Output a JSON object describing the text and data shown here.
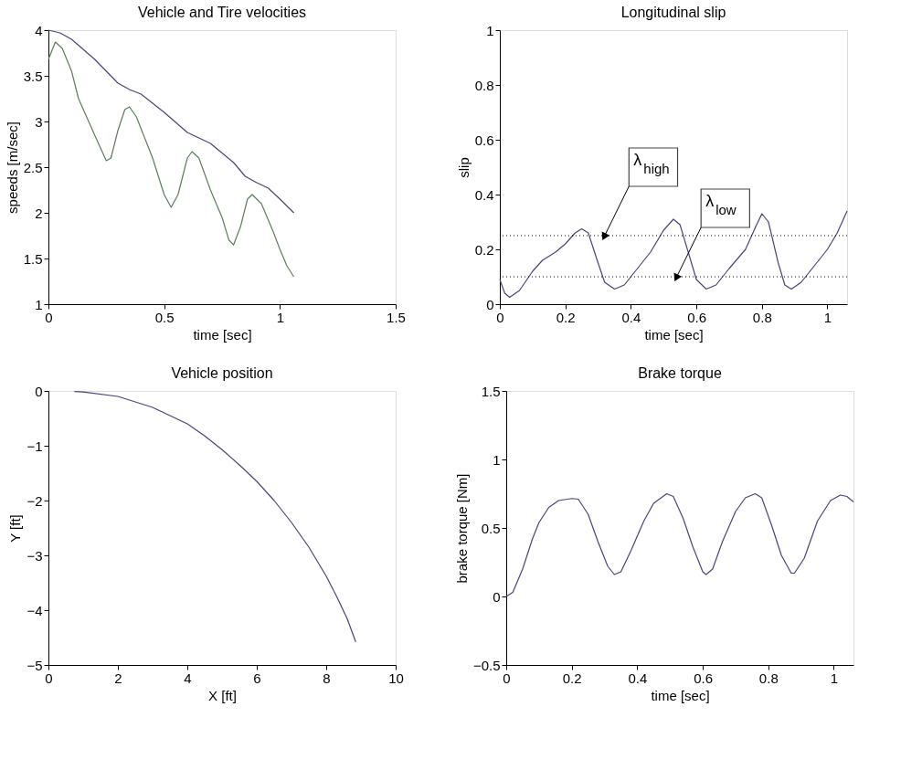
{
  "chart_data": [
    {
      "type": "line",
      "title": "Vehicle and Tire velocities",
      "xlabel": "time [sec]",
      "ylabel": "speeds [m/sec]",
      "xlim": [
        0,
        1.5
      ],
      "ylim": [
        1,
        4
      ],
      "xticks": [
        0,
        0.5,
        1,
        1.5
      ],
      "yticks": [
        1,
        1.5,
        2,
        2.5,
        3,
        3.5,
        4
      ],
      "series": [
        {
          "color": "#46467f",
          "x": [
            0,
            0.05,
            0.1,
            0.2,
            0.3,
            0.35,
            0.4,
            0.5,
            0.6,
            0.65,
            0.7,
            0.8,
            0.85,
            0.9,
            0.95,
            1.0,
            1.06
          ],
          "values": [
            4,
            3.97,
            3.9,
            3.68,
            3.42,
            3.35,
            3.3,
            3.1,
            2.88,
            2.82,
            2.76,
            2.55,
            2.4,
            2.33,
            2.27,
            2.15,
            2.0
          ]
        },
        {
          "color": "#5a7f5a",
          "x": [
            0,
            0.03,
            0.06,
            0.1,
            0.13,
            0.2,
            0.25,
            0.27,
            0.3,
            0.33,
            0.35,
            0.38,
            0.45,
            0.5,
            0.53,
            0.56,
            0.6,
            0.62,
            0.65,
            0.7,
            0.75,
            0.78,
            0.8,
            0.83,
            0.86,
            0.88,
            0.92,
            0.97,
            1.0,
            1.03,
            1.06
          ],
          "values": [
            3.68,
            3.87,
            3.8,
            3.55,
            3.25,
            2.85,
            2.57,
            2.6,
            2.9,
            3.13,
            3.16,
            3.05,
            2.6,
            2.2,
            2.06,
            2.2,
            2.6,
            2.67,
            2.6,
            2.25,
            1.95,
            1.7,
            1.65,
            1.85,
            2.15,
            2.2,
            2.1,
            1.8,
            1.6,
            1.42,
            1.3
          ]
        }
      ]
    },
    {
      "type": "line",
      "title": "Longitudinal slip",
      "xlabel": "time [sec]",
      "ylabel": "slip",
      "xlim": [
        0,
        1.06
      ],
      "ylim": [
        0,
        1
      ],
      "xticks": [
        0,
        0.2,
        0.4,
        0.6,
        0.8,
        1
      ],
      "yticks": [
        0,
        0.2,
        0.4,
        0.6,
        0.8,
        1
      ],
      "series": [
        {
          "color": "#46467f",
          "x": [
            0,
            0.015,
            0.03,
            0.06,
            0.1,
            0.13,
            0.17,
            0.2,
            0.23,
            0.25,
            0.27,
            0.3,
            0.32,
            0.35,
            0.38,
            0.42,
            0.46,
            0.5,
            0.53,
            0.55,
            0.58,
            0.6,
            0.63,
            0.66,
            0.7,
            0.75,
            0.78,
            0.8,
            0.82,
            0.85,
            0.87,
            0.89,
            0.92,
            0.96,
            1.0,
            1.03,
            1.06
          ],
          "values": [
            0.09,
            0.04,
            0.025,
            0.05,
            0.12,
            0.16,
            0.19,
            0.22,
            0.26,
            0.275,
            0.26,
            0.15,
            0.08,
            0.055,
            0.07,
            0.13,
            0.19,
            0.27,
            0.31,
            0.29,
            0.17,
            0.09,
            0.055,
            0.07,
            0.13,
            0.2,
            0.28,
            0.33,
            0.3,
            0.15,
            0.07,
            0.055,
            0.08,
            0.14,
            0.2,
            0.26,
            0.34
          ]
        }
      ],
      "ref_lines": [
        {
          "axis": "y",
          "value": 0.25,
          "color": "#000000",
          "line_style": "dotted"
        },
        {
          "axis": "y",
          "value": 0.1,
          "color": "#000000",
          "line_style": "dotted"
        }
      ],
      "annotations": [
        {
          "text": "λ$_{high}$",
          "x": 0.32,
          "y": 0.25
        },
        {
          "text": "λ$_{low}$",
          "x": 0.54,
          "y": 0.1
        }
      ]
    },
    {
      "type": "line",
      "title": "Vehicle position",
      "xlabel": "X [ft]",
      "ylabel": "Y [ft]",
      "xlim": [
        0,
        10
      ],
      "ylim": [
        -5,
        0
      ],
      "xticks": [
        0,
        2,
        4,
        6,
        8,
        10
      ],
      "yticks": [
        -5,
        -4,
        -3,
        -2,
        -1,
        0
      ],
      "series": [
        {
          "color": "#46467f",
          "x": [
            0.75,
            1,
            2,
            3,
            4,
            4.5,
            5,
            5.5,
            6,
            6.5,
            7,
            7.5,
            8,
            8.3,
            8.6,
            8.85
          ],
          "values": [
            -0.01,
            -0.02,
            -0.1,
            -0.3,
            -0.6,
            -0.82,
            -1.07,
            -1.35,
            -1.65,
            -2.0,
            -2.4,
            -2.85,
            -3.38,
            -3.75,
            -4.15,
            -4.58
          ]
        }
      ]
    },
    {
      "type": "line",
      "title": "Brake torque",
      "xlabel": "time [sec]",
      "ylabel": "brake torque [Nm]",
      "xlim": [
        0,
        1.06
      ],
      "ylim": [
        -0.5,
        1.5
      ],
      "xticks": [
        0,
        0.2,
        0.4,
        0.6,
        0.8,
        1
      ],
      "yticks": [
        -0.5,
        0,
        0.5,
        1,
        1.5
      ],
      "series": [
        {
          "color": "#46467f",
          "x": [
            0,
            0.02,
            0.05,
            0.08,
            0.1,
            0.13,
            0.16,
            0.2,
            0.22,
            0.25,
            0.28,
            0.31,
            0.33,
            0.35,
            0.38,
            0.42,
            0.45,
            0.49,
            0.51,
            0.54,
            0.57,
            0.6,
            0.61,
            0.63,
            0.66,
            0.7,
            0.73,
            0.76,
            0.78,
            0.81,
            0.84,
            0.87,
            0.88,
            0.91,
            0.95,
            0.99,
            1.02,
            1.04,
            1.06
          ],
          "values": [
            0,
            0.03,
            0.2,
            0.42,
            0.54,
            0.65,
            0.7,
            0.715,
            0.71,
            0.6,
            0.4,
            0.22,
            0.16,
            0.18,
            0.33,
            0.55,
            0.68,
            0.75,
            0.73,
            0.57,
            0.36,
            0.18,
            0.16,
            0.2,
            0.4,
            0.62,
            0.72,
            0.75,
            0.72,
            0.52,
            0.3,
            0.17,
            0.17,
            0.28,
            0.55,
            0.7,
            0.74,
            0.73,
            0.69
          ]
        }
      ]
    }
  ]
}
